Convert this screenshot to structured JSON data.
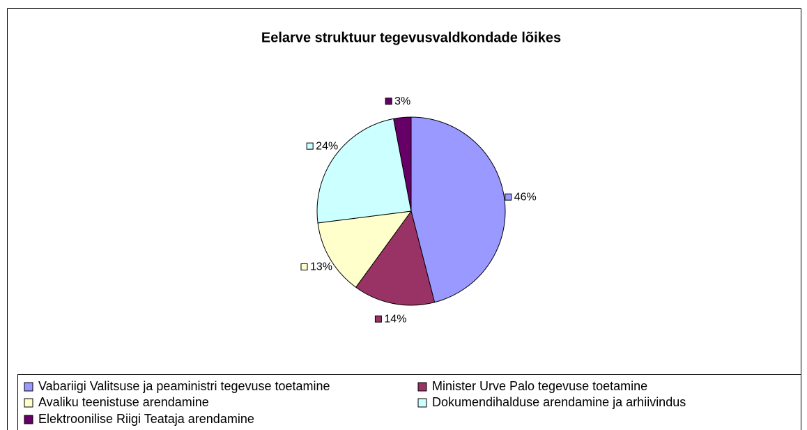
{
  "chart_data": {
    "type": "pie",
    "title": "Eelarve struktuur tegevusvaldkondade lõikes",
    "categories": [
      "Vabariigi Valitsuse ja peaministri tegevuse toetamine",
      "Minister Urve Palo tegevuse toetamine",
      "Avaliku teenistuse arendamine",
      "Dokumendihalduse arendamine ja arhiivindus",
      "Elektroonilise Riigi Teataja arendamine"
    ],
    "values": [
      46,
      14,
      13,
      24,
      3
    ],
    "value_labels": [
      "46%",
      "14%",
      "13%",
      "24%",
      "3%"
    ],
    "colors": [
      "#9999ff",
      "#993366",
      "#ffffcc",
      "#ccffff",
      "#660066"
    ],
    "legend": "bottom"
  }
}
